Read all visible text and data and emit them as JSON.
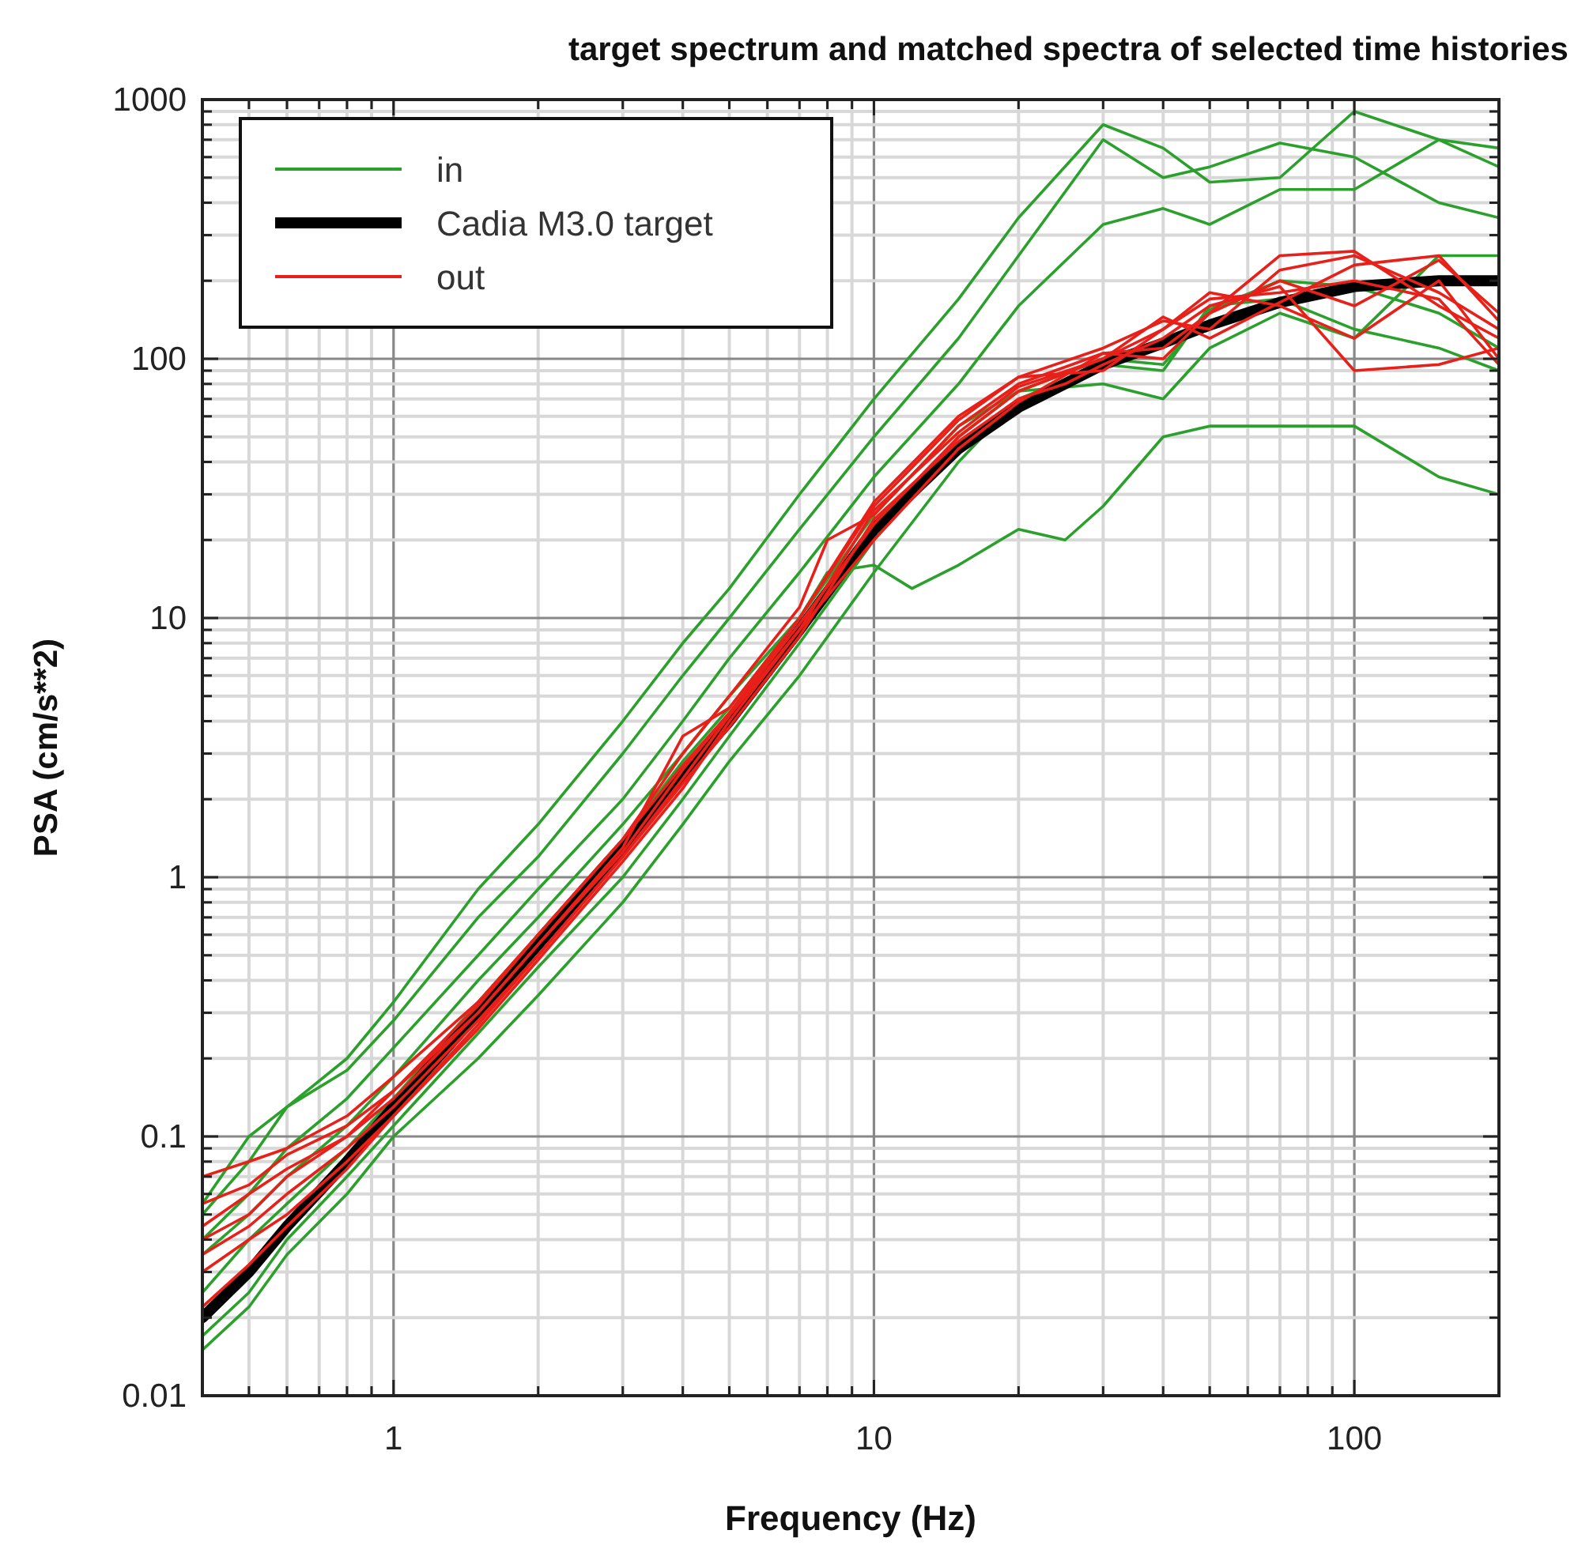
{
  "chart_data": {
    "type": "line",
    "title": "target spectrum and matched spectra of selected time histories",
    "xlabel": "Frequency (Hz)",
    "ylabel": "PSA (cm/s**2)",
    "log": "xy",
    "grid": true,
    "legend": "top left",
    "line_style": "solid",
    "marker": "none",
    "xlim": [
      0.4,
      200
    ],
    "ylim": [
      0.01,
      1000
    ],
    "xticks": [
      {
        "value": 0.4,
        "label": null
      },
      {
        "value": 0.5,
        "label": null
      },
      {
        "value": 0.6,
        "label": null
      },
      {
        "value": 0.7,
        "label": null
      },
      {
        "value": 0.8,
        "label": null
      },
      {
        "value": 0.9,
        "label": null
      },
      1,
      {
        "value": 2,
        "label": null
      },
      {
        "value": 3,
        "label": null
      },
      {
        "value": 4,
        "label": null
      },
      {
        "value": 5,
        "label": null
      },
      {
        "value": 6,
        "label": null
      },
      {
        "value": 7,
        "label": null
      },
      {
        "value": 8,
        "label": null
      },
      {
        "value": 9,
        "label": null
      },
      10,
      {
        "value": 20,
        "label": null
      },
      {
        "value": 30,
        "label": null
      },
      {
        "value": 40,
        "label": null
      },
      {
        "value": 50,
        "label": null
      },
      {
        "value": 60,
        "label": null
      },
      {
        "value": 70,
        "label": null
      },
      {
        "value": 80,
        "label": null
      },
      {
        "value": 90,
        "label": null
      },
      100,
      {
        "value": 200,
        "label": null
      }
    ],
    "yticks": [
      0.01,
      {
        "value": 0.02,
        "label": null
      },
      {
        "value": 0.03,
        "label": null
      },
      {
        "value": 0.04,
        "label": null
      },
      {
        "value": 0.05,
        "label": null
      },
      {
        "value": 0.06,
        "label": null
      },
      {
        "value": 0.07,
        "label": null
      },
      {
        "value": 0.08,
        "label": null
      },
      {
        "value": 0.09,
        "label": null
      },
      0.1,
      {
        "value": 0.2,
        "label": null
      },
      {
        "value": 0.3,
        "label": null
      },
      {
        "value": 0.4,
        "label": null
      },
      {
        "value": 0.5,
        "label": null
      },
      {
        "value": 0.6,
        "label": null
      },
      {
        "value": 0.7,
        "label": null
      },
      {
        "value": 0.8,
        "label": null
      },
      {
        "value": 0.9,
        "label": null
      },
      1,
      {
        "value": 2,
        "label": null
      },
      {
        "value": 3,
        "label": null
      },
      {
        "value": 4,
        "label": null
      },
      {
        "value": 5,
        "label": null
      },
      {
        "value": 6,
        "label": null
      },
      {
        "value": 7,
        "label": null
      },
      {
        "value": 8,
        "label": null
      },
      {
        "value": 9,
        "label": null
      },
      10,
      {
        "value": 20,
        "label": null
      },
      {
        "value": 30,
        "label": null
      },
      {
        "value": 40,
        "label": null
      },
      {
        "value": 50,
        "label": null
      },
      {
        "value": 60,
        "label": null
      },
      {
        "value": 70,
        "label": null
      },
      {
        "value": 80,
        "label": null
      },
      {
        "value": 90,
        "label": null
      },
      100,
      {
        "value": 200,
        "label": null
      },
      {
        "value": 300,
        "label": null
      },
      {
        "value": 400,
        "label": null
      },
      {
        "value": 500,
        "label": null
      },
      {
        "value": 600,
        "label": null
      },
      {
        "value": 700,
        "label": null
      },
      {
        "value": 800,
        "label": null
      },
      {
        "value": 900,
        "label": null
      },
      1000
    ],
    "series": [
      {
        "name": "in",
        "color": "#2ca02c",
        "x": [
          0.4,
          0.5,
          0.6,
          0.8,
          1,
          1.5,
          2,
          3,
          4,
          5,
          7,
          10,
          15,
          20,
          30,
          40,
          50,
          70,
          100,
          150,
          200
        ],
        "values": [
          0.055,
          0.1,
          0.13,
          0.2,
          0.33,
          0.9,
          1.6,
          4,
          8,
          13,
          30,
          70,
          170,
          350,
          800,
          650,
          480,
          500,
          900,
          700,
          650
        ]
      },
      {
        "color": "#2ca02c",
        "x": [
          0.4,
          0.5,
          0.6,
          0.8,
          1,
          1.5,
          2,
          3,
          4,
          5,
          7,
          10,
          15,
          20,
          30,
          40,
          50,
          70,
          100,
          150,
          200
        ],
        "values": [
          0.05,
          0.08,
          0.13,
          0.18,
          0.28,
          0.7,
          1.2,
          3,
          6,
          10,
          22,
          50,
          120,
          250,
          700,
          500,
          550,
          680,
          600,
          400,
          350
        ]
      },
      {
        "color": "#2ca02c",
        "x": [
          0.4,
          0.5,
          0.6,
          0.8,
          1,
          1.5,
          2,
          3,
          4,
          5,
          7,
          10,
          15,
          20,
          30,
          40,
          50,
          70,
          100,
          150,
          200
        ],
        "values": [
          0.04,
          0.06,
          0.09,
          0.14,
          0.22,
          0.5,
          0.9,
          2,
          4,
          7,
          15,
          35,
          80,
          160,
          330,
          380,
          330,
          450,
          450,
          700,
          550
        ]
      },
      {
        "color": "#2ca02c",
        "x": [
          0.4,
          0.5,
          0.6,
          0.8,
          1,
          1.5,
          2,
          3,
          4,
          5,
          7,
          8,
          10,
          12,
          15,
          20,
          25,
          30,
          40,
          50,
          70,
          100,
          150,
          200
        ],
        "values": [
          0.035,
          0.05,
          0.07,
          0.11,
          0.17,
          0.4,
          0.7,
          1.6,
          3,
          5,
          10,
          15,
          16,
          13,
          16,
          22,
          20,
          27,
          50,
          55,
          55,
          55,
          35,
          30
        ]
      },
      {
        "color": "#2ca02c",
        "x": [
          0.4,
          0.5,
          0.6,
          0.8,
          1,
          1.5,
          2,
          3,
          4,
          5,
          7,
          10,
          15,
          20,
          30,
          40,
          50,
          70,
          100,
          150,
          200
        ],
        "values": [
          0.017,
          0.025,
          0.04,
          0.07,
          0.11,
          0.25,
          0.45,
          1,
          2,
          3.5,
          8,
          20,
          50,
          75,
          80,
          70,
          110,
          150,
          120,
          250,
          250
        ]
      },
      {
        "color": "#2ca02c",
        "x": [
          0.4,
          0.5,
          0.6,
          0.8,
          1,
          1.5,
          2,
          3,
          4,
          5,
          7,
          10,
          15,
          20,
          30,
          40,
          50,
          70,
          100,
          150,
          200
        ],
        "values": [
          0.015,
          0.022,
          0.035,
          0.06,
          0.1,
          0.2,
          0.35,
          0.8,
          1.6,
          2.8,
          6,
          15,
          40,
          70,
          95,
          90,
          160,
          170,
          130,
          110,
          90
        ]
      },
      {
        "color": "#2ca02c",
        "x": [
          0.4,
          0.5,
          0.6,
          0.8,
          1,
          1.5,
          2,
          3,
          4,
          5,
          7,
          10,
          15,
          20,
          30,
          40,
          50,
          70,
          100,
          150,
          200
        ],
        "values": [
          0.025,
          0.04,
          0.055,
          0.09,
          0.14,
          0.33,
          0.6,
          1.4,
          2.8,
          4.5,
          10,
          25,
          55,
          75,
          100,
          95,
          155,
          200,
          190,
          150,
          110
        ]
      },
      {
        "name": "Cadia M3.0 target",
        "color": "#000000",
        "x": [
          0.4,
          0.5,
          0.6,
          0.8,
          1,
          1.5,
          2,
          3,
          4,
          5,
          7,
          10,
          15,
          20,
          30,
          40,
          50,
          70,
          100,
          150,
          200
        ],
        "values": [
          0.02,
          0.03,
          0.045,
          0.08,
          0.13,
          0.3,
          0.55,
          1.3,
          2.5,
          4,
          9,
          22,
          45,
          65,
          95,
          115,
          135,
          165,
          190,
          200,
          200
        ]
      },
      {
        "name": "out",
        "color": "#e8201a",
        "x": [
          0.4,
          0.5,
          0.6,
          0.8,
          1,
          1.5,
          2,
          3,
          4,
          5,
          7,
          8,
          10,
          15,
          20,
          30,
          40,
          50,
          70,
          100,
          150,
          200
        ],
        "values": [
          0.07,
          0.08,
          0.09,
          0.12,
          0.17,
          0.33,
          0.6,
          1.4,
          3,
          5,
          11,
          20,
          25,
          55,
          80,
          105,
          100,
          150,
          200,
          160,
          240,
          150
        ]
      },
      {
        "color": "#e8201a",
        "x": [
          0.4,
          0.5,
          0.6,
          0.8,
          1,
          1.5,
          2,
          3,
          4,
          5,
          7,
          10,
          15,
          20,
          30,
          40,
          50,
          70,
          100,
          150,
          200
        ],
        "values": [
          0.055,
          0.065,
          0.085,
          0.11,
          0.15,
          0.3,
          0.55,
          1.3,
          3.5,
          4.5,
          10,
          28,
          60,
          85,
          110,
          140,
          130,
          220,
          250,
          180,
          130
        ]
      },
      {
        "color": "#e8201a",
        "x": [
          0.4,
          0.5,
          0.6,
          0.8,
          1,
          1.5,
          2,
          3,
          4,
          5,
          7,
          10,
          15,
          20,
          30,
          40,
          50,
          70,
          100,
          150,
          200
        ],
        "values": [
          0.04,
          0.05,
          0.07,
          0.1,
          0.15,
          0.32,
          0.6,
          1.4,
          2.7,
          4.3,
          9.5,
          23,
          50,
          75,
          100,
          130,
          180,
          160,
          120,
          200,
          100
        ]
      },
      {
        "color": "#e8201a",
        "x": [
          0.4,
          0.5,
          0.6,
          0.8,
          1,
          1.5,
          2,
          3,
          4,
          5,
          7,
          10,
          15,
          20,
          25,
          30,
          40,
          50,
          70,
          100,
          150,
          200
        ],
        "values": [
          0.035,
          0.045,
          0.06,
          0.09,
          0.13,
          0.28,
          0.5,
          1.2,
          2.3,
          3.8,
          8.5,
          24,
          48,
          70,
          80,
          95,
          120,
          160,
          190,
          90,
          95,
          110
        ]
      },
      {
        "color": "#e8201a",
        "x": [
          0.4,
          0.5,
          0.6,
          0.8,
          1,
          1.5,
          2,
          3,
          4,
          5,
          7,
          10,
          15,
          20,
          30,
          40,
          50,
          70,
          100,
          150,
          200
        ],
        "values": [
          0.03,
          0.04,
          0.05,
          0.08,
          0.12,
          0.26,
          0.48,
          1.15,
          2.2,
          4,
          9,
          20,
          45,
          68,
          105,
          110,
          150,
          250,
          260,
          160,
          120
        ]
      },
      {
        "color": "#e8201a",
        "x": [
          0.4,
          0.5,
          0.6,
          0.8,
          1,
          1.5,
          2,
          3,
          4,
          5,
          7,
          10,
          15,
          20,
          30,
          40,
          50,
          70,
          100,
          150,
          200
        ],
        "values": [
          0.022,
          0.032,
          0.045,
          0.075,
          0.12,
          0.27,
          0.5,
          1.2,
          2.4,
          4.2,
          9,
          26,
          52,
          78,
          100,
          145,
          120,
          165,
          230,
          250,
          140
        ]
      },
      {
        "color": "#e8201a",
        "x": [
          0.4,
          0.5,
          0.6,
          0.8,
          1,
          1.5,
          2,
          3,
          4,
          5,
          7,
          10,
          15,
          20,
          30,
          40,
          50,
          70,
          100,
          150,
          200
        ],
        "values": [
          0.045,
          0.06,
          0.075,
          0.1,
          0.14,
          0.3,
          0.55,
          1.25,
          2.6,
          4.3,
          10,
          27,
          58,
          85,
          90,
          130,
          170,
          180,
          200,
          170,
          95
        ]
      }
    ]
  }
}
